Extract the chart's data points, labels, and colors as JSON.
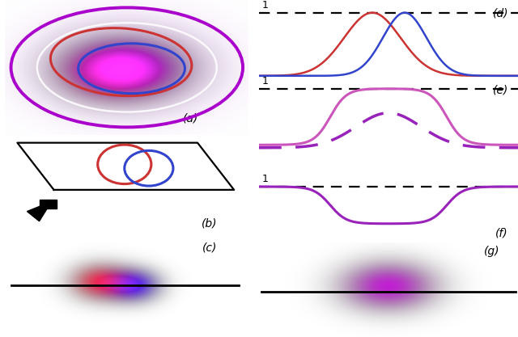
{
  "fig_width": 6.4,
  "fig_height": 4.17,
  "dpi": 100,
  "bg_color": "#ffffff",
  "label_a": "(a)",
  "label_b": "(b)",
  "label_c": "(c)",
  "label_d": "(d)",
  "label_e": "(e)",
  "label_f": "(f)",
  "label_g": "(g)",
  "color_red": "#cc3333",
  "color_blue": "#3344cc",
  "color_purple_outer": "#aa00cc",
  "color_pink": "#cc55bb",
  "color_purple_dashed": "#9922bb",
  "color_purple_solid": "#9922bb",
  "color_purple_g_center": "#880099"
}
